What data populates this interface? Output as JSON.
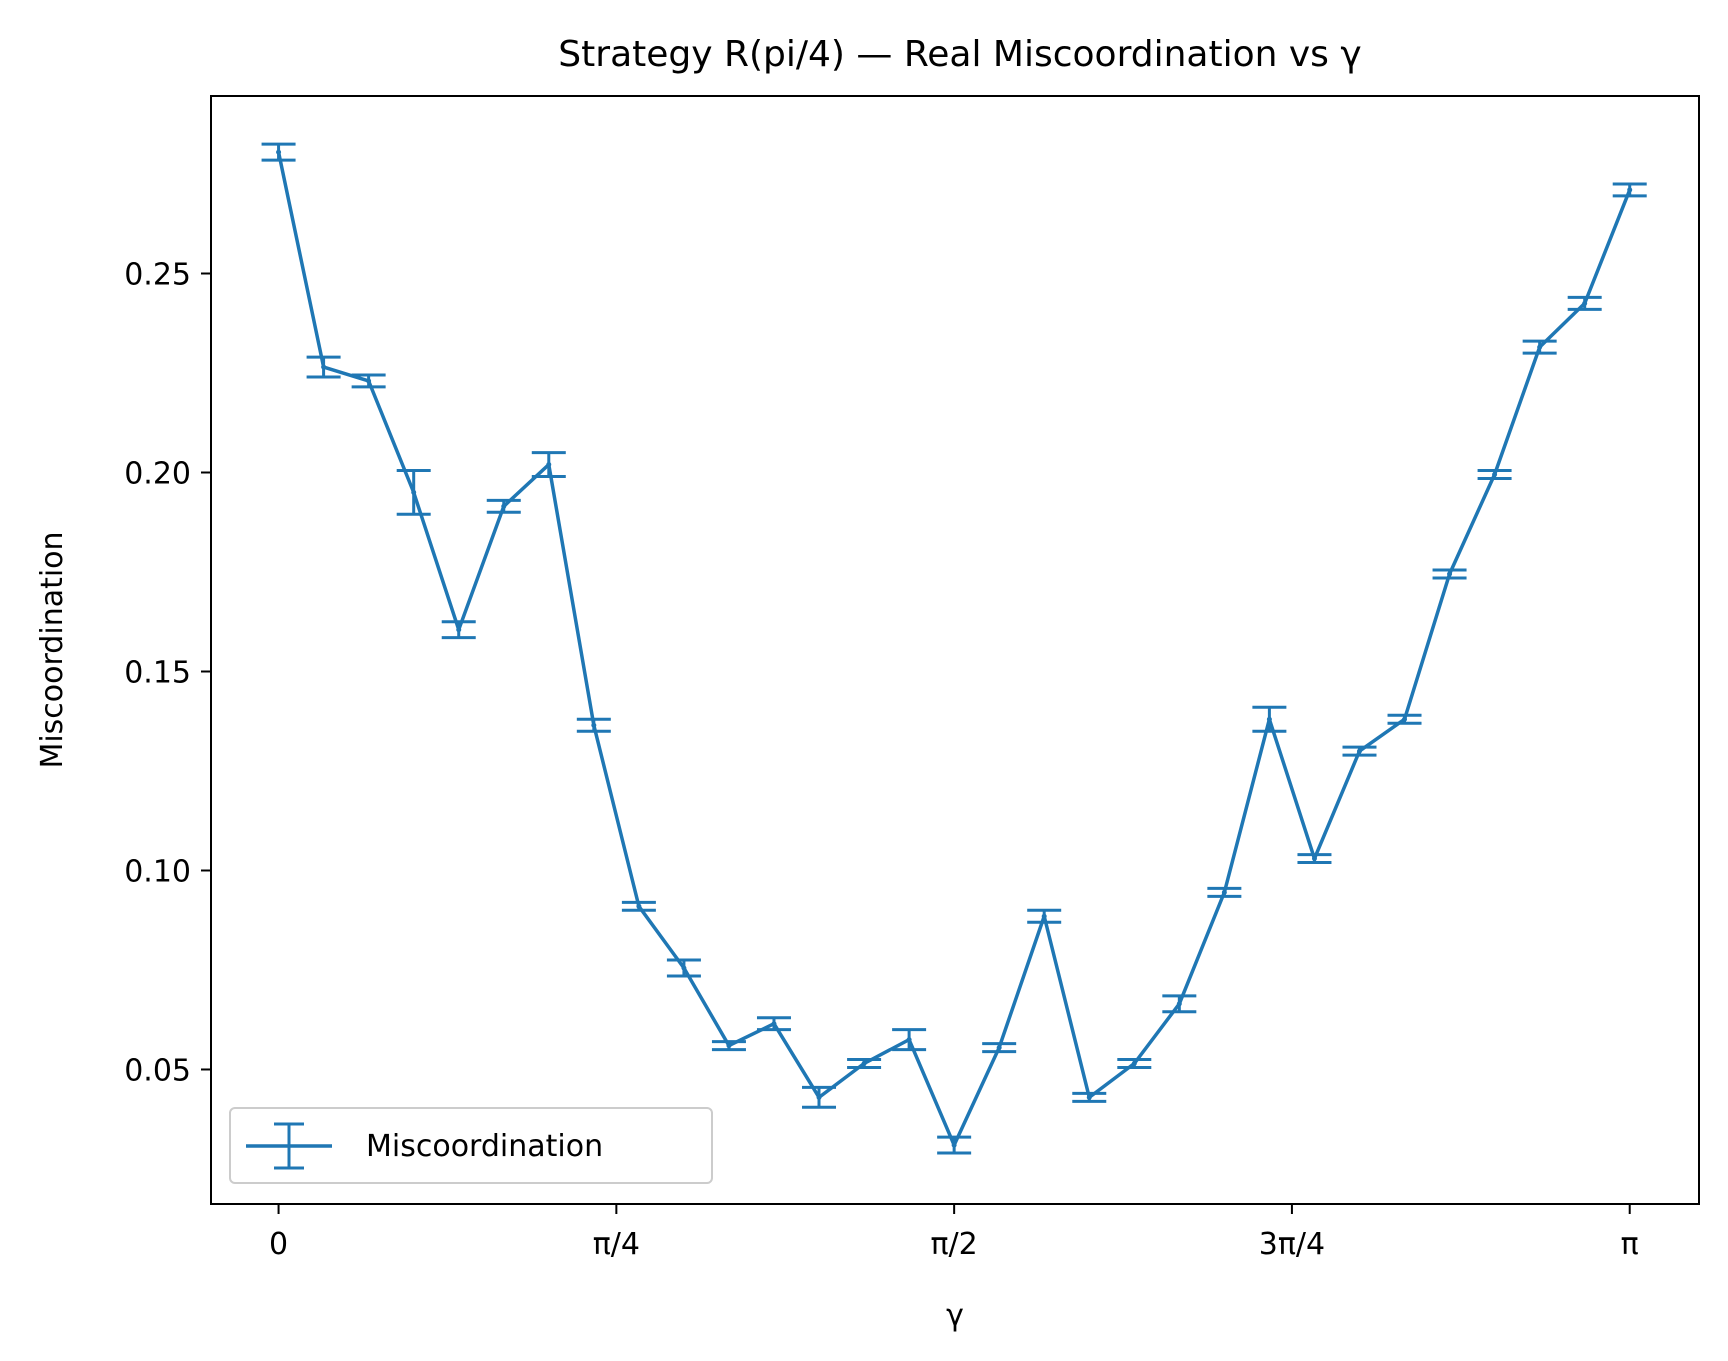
{
  "chart_data": {
    "type": "line",
    "title": "Strategy R(pi/4) — Real Miscoordination vs γ",
    "xlabel": "γ",
    "ylabel": "Miscoordination",
    "xlim": [
      -0.1571,
      3.3027
    ],
    "ylim": [
      0.0162,
      0.2946
    ],
    "x_ticks": [
      {
        "value": 0,
        "label": "0"
      },
      {
        "value": 0.7854,
        "label": "π/4"
      },
      {
        "value": 1.5708,
        "label": "π/2"
      },
      {
        "value": 2.3562,
        "label": "3π/4"
      },
      {
        "value": 3.1416,
        "label": "π"
      }
    ],
    "y_ticks": [
      {
        "value": 0.05,
        "label": "0.05"
      },
      {
        "value": 0.1,
        "label": "0.10"
      },
      {
        "value": 0.15,
        "label": "0.15"
      },
      {
        "value": 0.2,
        "label": "0.20"
      },
      {
        "value": 0.25,
        "label": "0.25"
      }
    ],
    "grid": false,
    "legend_position": "lower-left",
    "color": "#1f77b4",
    "series": [
      {
        "name": "Miscoordination",
        "x": [
          0.0,
          0.1047,
          0.2094,
          0.3142,
          0.4189,
          0.5236,
          0.6283,
          0.733,
          0.8378,
          0.9425,
          1.0472,
          1.1519,
          1.2566,
          1.3614,
          1.4661,
          1.5708,
          1.6755,
          1.7802,
          1.885,
          1.9897,
          2.0944,
          2.1991,
          2.3038,
          2.4086,
          2.5133,
          2.618,
          2.7227,
          2.8274,
          2.9322,
          3.0369,
          3.1416
        ],
        "y": [
          0.2805,
          0.2265,
          0.223,
          0.195,
          0.1605,
          0.1915,
          0.202,
          0.1365,
          0.091,
          0.0755,
          0.056,
          0.0615,
          0.043,
          0.0515,
          0.0575,
          0.031,
          0.0555,
          0.0885,
          0.043,
          0.0515,
          0.0665,
          0.0945,
          0.138,
          0.103,
          0.13,
          0.138,
          0.1745,
          0.1995,
          0.2315,
          0.2425,
          0.271
        ],
        "yerr": [
          0.002,
          0.0025,
          0.0015,
          0.0055,
          0.002,
          0.0015,
          0.003,
          0.0015,
          0.001,
          0.002,
          0.001,
          0.0015,
          0.0025,
          0.001,
          0.0025,
          0.002,
          0.001,
          0.0015,
          0.001,
          0.001,
          0.002,
          0.001,
          0.003,
          0.001,
          0.001,
          0.001,
          0.001,
          0.001,
          0.0015,
          0.0015,
          0.0015
        ]
      }
    ]
  }
}
